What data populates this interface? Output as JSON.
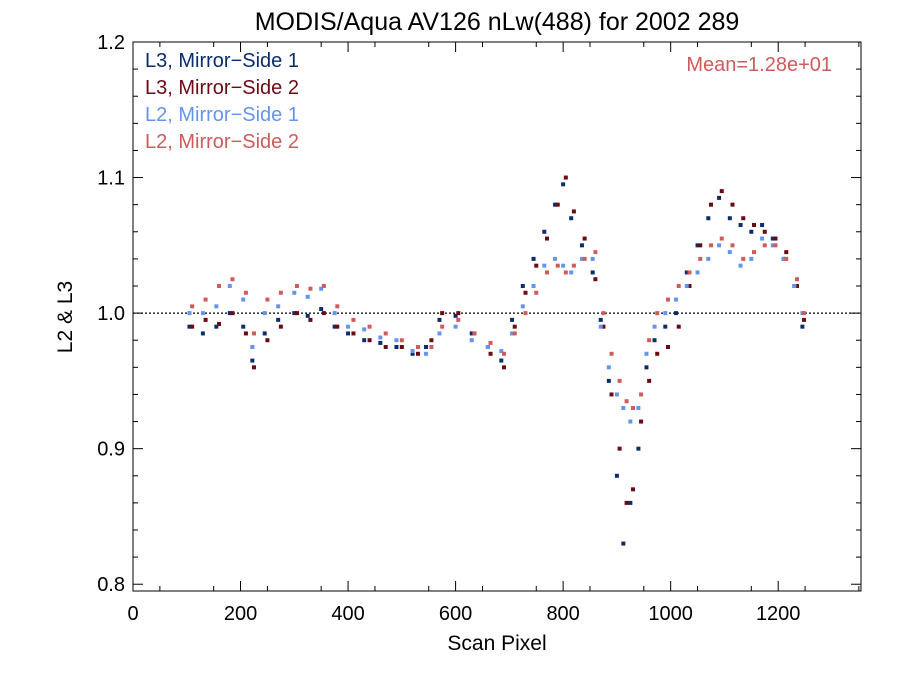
{
  "chart_data": {
    "type": "scatter",
    "title": "MODIS/Aqua AV126 nLw(488) for 2002 289",
    "xlabel": "Scan Pixel",
    "ylabel": "L2 & L3",
    "xlim": [
      0,
      1354
    ],
    "ylim": [
      0.795,
      1.2
    ],
    "x_ticks": [
      0,
      200,
      400,
      600,
      800,
      1000,
      1200
    ],
    "y_ticks": [
      0.8,
      0.9,
      1.0,
      1.1,
      1.2
    ],
    "x_tick_labels": [
      "0",
      "200",
      "400",
      "600",
      "800",
      "1000",
      "1200"
    ],
    "y_tick_labels": [
      "0.8",
      "0.9",
      "1.0",
      "1.1",
      "1.2"
    ],
    "reference_line": 1.0,
    "annotation": "Mean=1.28e+01",
    "annotation_color": "#cd5c5c",
    "legend_position": "top-left",
    "series": [
      {
        "name": "L3, Mirror−Side 1",
        "color": "#0b2d6b",
        "x": [
          105,
          130,
          155,
          180,
          205,
          222,
          245,
          270,
          300,
          325,
          350,
          375,
          400,
          430,
          460,
          490,
          520,
          545,
          570,
          600,
          630,
          660,
          685,
          705,
          725,
          745,
          765,
          785,
          800,
          815,
          835,
          855,
          870,
          885,
          900,
          912,
          925,
          940,
          955,
          970,
          990,
          1010,
          1030,
          1050,
          1070,
          1090,
          1110,
          1130,
          1150,
          1170,
          1190,
          1210,
          1230,
          1245
        ],
        "y": [
          0.99,
          0.985,
          0.99,
          1.0,
          0.99,
          0.965,
          0.985,
          0.995,
          1.0,
          0.998,
          1.003,
          0.99,
          0.985,
          0.98,
          0.978,
          0.975,
          0.97,
          0.975,
          0.995,
          0.998,
          0.985,
          0.975,
          0.965,
          0.995,
          1.02,
          1.04,
          1.06,
          1.08,
          1.095,
          1.07,
          1.05,
          1.03,
          0.995,
          0.95,
          0.88,
          0.83,
          0.86,
          0.9,
          0.96,
          0.98,
          0.99,
          1.0,
          1.03,
          1.05,
          1.07,
          1.085,
          1.07,
          1.065,
          1.06,
          1.065,
          1.055,
          1.04,
          1.02,
          0.99
        ]
      },
      {
        "name": "L3, Mirror−Side 2",
        "color": "#6b0a14",
        "x": [
          110,
          135,
          160,
          185,
          210,
          225,
          250,
          275,
          305,
          330,
          355,
          380,
          410,
          440,
          470,
          500,
          530,
          555,
          575,
          605,
          635,
          665,
          690,
          710,
          730,
          750,
          770,
          790,
          805,
          820,
          840,
          860,
          875,
          890,
          905,
          918,
          930,
          945,
          960,
          975,
          995,
          1015,
          1035,
          1055,
          1075,
          1095,
          1115,
          1135,
          1155,
          1175,
          1195,
          1215,
          1235,
          1248
        ],
        "y": [
          0.99,
          0.995,
          0.992,
          1.0,
          0.985,
          0.96,
          0.98,
          0.99,
          1.0,
          0.995,
          1.0,
          0.99,
          0.985,
          0.98,
          0.975,
          0.975,
          0.97,
          0.98,
          1.0,
          1.0,
          0.985,
          0.97,
          0.96,
          0.99,
          1.015,
          1.035,
          1.055,
          1.08,
          1.1,
          1.075,
          1.055,
          1.025,
          0.99,
          0.94,
          0.9,
          0.86,
          0.87,
          0.92,
          0.95,
          0.97,
          0.975,
          0.99,
          1.02,
          1.05,
          1.08,
          1.09,
          1.08,
          1.07,
          1.065,
          1.06,
          1.055,
          1.045,
          1.02,
          0.995
        ]
      },
      {
        "name": "L2, Mirror−Side 1",
        "color": "#6495ed",
        "x": [
          105,
          130,
          155,
          180,
          205,
          222,
          245,
          270,
          300,
          325,
          350,
          375,
          400,
          430,
          460,
          490,
          520,
          545,
          570,
          600,
          630,
          660,
          685,
          705,
          725,
          745,
          765,
          785,
          800,
          815,
          835,
          855,
          870,
          885,
          900,
          912,
          925,
          940,
          955,
          970,
          990,
          1010,
          1030,
          1050,
          1070,
          1090,
          1110,
          1130,
          1150,
          1170,
          1190,
          1210,
          1230,
          1245
        ],
        "y": [
          1.0,
          1.0,
          1.005,
          1.02,
          1.01,
          0.975,
          1.0,
          1.005,
          1.015,
          1.012,
          1.018,
          1.0,
          0.99,
          0.988,
          0.982,
          0.98,
          0.972,
          0.97,
          0.985,
          0.99,
          0.98,
          0.975,
          0.972,
          0.985,
          1.005,
          1.02,
          1.035,
          1.04,
          1.035,
          1.03,
          1.04,
          1.04,
          0.99,
          0.96,
          0.94,
          0.93,
          0.92,
          0.93,
          0.97,
          0.99,
          1.0,
          1.01,
          1.02,
          1.03,
          1.04,
          1.05,
          1.045,
          1.035,
          1.04,
          1.055,
          1.05,
          1.04,
          1.02,
          1.0
        ]
      },
      {
        "name": "L2, Mirror−Side 2",
        "color": "#cd5c5c",
        "x": [
          110,
          135,
          160,
          185,
          210,
          225,
          250,
          275,
          305,
          330,
          355,
          380,
          410,
          440,
          470,
          500,
          530,
          555,
          575,
          605,
          635,
          665,
          690,
          710,
          730,
          750,
          770,
          790,
          805,
          820,
          840,
          860,
          875,
          890,
          905,
          918,
          930,
          945,
          960,
          975,
          995,
          1015,
          1035,
          1055,
          1075,
          1095,
          1115,
          1135,
          1155,
          1175,
          1195,
          1215,
          1235,
          1248
        ],
        "y": [
          1.005,
          1.01,
          1.02,
          1.025,
          1.015,
          0.985,
          1.01,
          1.015,
          1.02,
          1.018,
          1.02,
          1.005,
          0.995,
          0.99,
          0.985,
          0.98,
          0.975,
          0.975,
          0.99,
          0.995,
          0.985,
          0.978,
          0.97,
          0.985,
          1.0,
          1.015,
          1.03,
          1.035,
          1.03,
          1.035,
          1.04,
          1.045,
          1.0,
          0.97,
          0.95,
          0.935,
          0.93,
          0.94,
          0.98,
          1.0,
          1.01,
          1.02,
          1.03,
          1.04,
          1.05,
          1.055,
          1.05,
          1.04,
          1.045,
          1.05,
          1.05,
          1.04,
          1.025,
          1.0
        ]
      }
    ]
  }
}
